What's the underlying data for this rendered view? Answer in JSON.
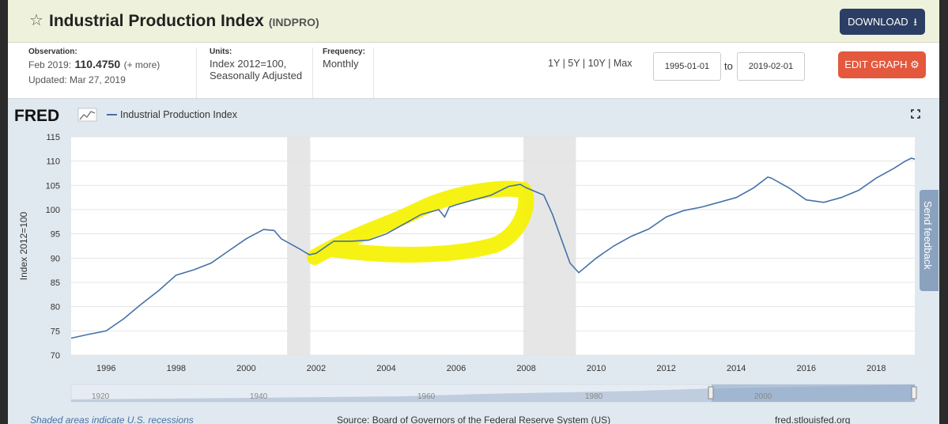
{
  "header": {
    "title": "Industrial Production Index",
    "series_code": "(INDPRO)",
    "download_label": "DOWNLOAD"
  },
  "meta": {
    "observation_label": "Observation:",
    "observation_date": "Feb 2019:",
    "observation_value": "110.4750",
    "observation_more": "(+ more)",
    "updated": "Updated: Mar 27, 2019",
    "units_label": "Units:",
    "units_line1": "Index 2012=100,",
    "units_line2": "Seasonally Adjusted",
    "frequency_label": "Frequency:",
    "frequency_value": "Monthly"
  },
  "controls": {
    "range_1y": "1Y",
    "range_5y": "5Y",
    "range_10y": "10Y",
    "range_max": "Max",
    "sep": "|",
    "start_date": "1995-01-01",
    "to_label": "to",
    "end_date": "2019-02-01",
    "edit_label": "EDIT GRAPH"
  },
  "graph": {
    "logo": "FRED",
    "legend_label": "Industrial Production Index",
    "footer_recessions": "Shaded areas indicate U.S. recessions",
    "footer_source": "Source: Board of Governors of the Federal Reserve System (US)",
    "footer_site": "fred.stlouisfed.org",
    "feedback_label": "Send feedback",
    "navigator_labels": [
      "1920",
      "1940",
      "1960",
      "1980",
      "2000"
    ]
  },
  "colors": {
    "line": "#4572a7",
    "recession": "#e6e6e6",
    "highlight": "#f5f200",
    "header_bg": "#eef2dc",
    "download_bg": "#2c3e63",
    "edit_bg": "#e4583d"
  },
  "chart_data": {
    "type": "line",
    "ylabel": "Index 2012=100",
    "ylim": [
      70,
      115
    ],
    "yticks": [
      "70",
      "75",
      "80",
      "85",
      "90",
      "95",
      "100",
      "105",
      "110",
      "115"
    ],
    "xlim": [
      1995.0,
      2019.1
    ],
    "xticks": [
      "1996",
      "1998",
      "2000",
      "2002",
      "2004",
      "2006",
      "2008",
      "2010",
      "2012",
      "2014",
      "2016",
      "2018"
    ],
    "recessions": [
      [
        2001.17,
        2001.83
      ],
      [
        2007.92,
        2009.42
      ]
    ],
    "grid": true,
    "series": [
      {
        "name": "Industrial Production Index",
        "x": [
          1995.0,
          1995.5,
          1996.0,
          1996.5,
          1997.0,
          1997.5,
          1998.0,
          1998.5,
          1999.0,
          1999.5,
          2000.0,
          2000.5,
          2000.8,
          2001.0,
          2001.5,
          2001.8,
          2002.0,
          2002.5,
          2003.0,
          2003.5,
          2004.0,
          2004.5,
          2005.0,
          2005.5,
          2005.67,
          2005.8,
          2006.0,
          2006.5,
          2007.0,
          2007.5,
          2007.83,
          2008.0,
          2008.5,
          2008.75,
          2009.0,
          2009.25,
          2009.5,
          2009.75,
          2010.0,
          2010.5,
          2011.0,
          2011.5,
          2012.0,
          2012.5,
          2013.0,
          2013.5,
          2014.0,
          2014.5,
          2014.9,
          2015.0,
          2015.5,
          2016.0,
          2016.5,
          2017.0,
          2017.5,
          2018.0,
          2018.5,
          2018.83,
          2019.0,
          2019.1
        ],
        "y": [
          73.5,
          74.3,
          75.0,
          77.5,
          80.5,
          83.3,
          86.5,
          87.6,
          89.0,
          91.5,
          94.0,
          95.9,
          95.7,
          94.0,
          92.0,
          90.7,
          91.0,
          93.5,
          93.5,
          93.7,
          95.0,
          97.0,
          99.0,
          100.0,
          98.5,
          100.5,
          101.0,
          102.0,
          103.0,
          104.8,
          105.2,
          104.5,
          103.0,
          99.0,
          94.0,
          89.0,
          87.0,
          88.5,
          90.0,
          92.5,
          94.5,
          96.0,
          98.5,
          99.8,
          100.5,
          101.5,
          102.5,
          104.5,
          106.7,
          106.5,
          104.5,
          102.0,
          101.5,
          102.5,
          104.0,
          106.5,
          108.5,
          110.0,
          110.6,
          110.4
        ]
      }
    ],
    "annotation": "yellow freehand highlight loop drawn around the 2002-2008 expansion"
  }
}
